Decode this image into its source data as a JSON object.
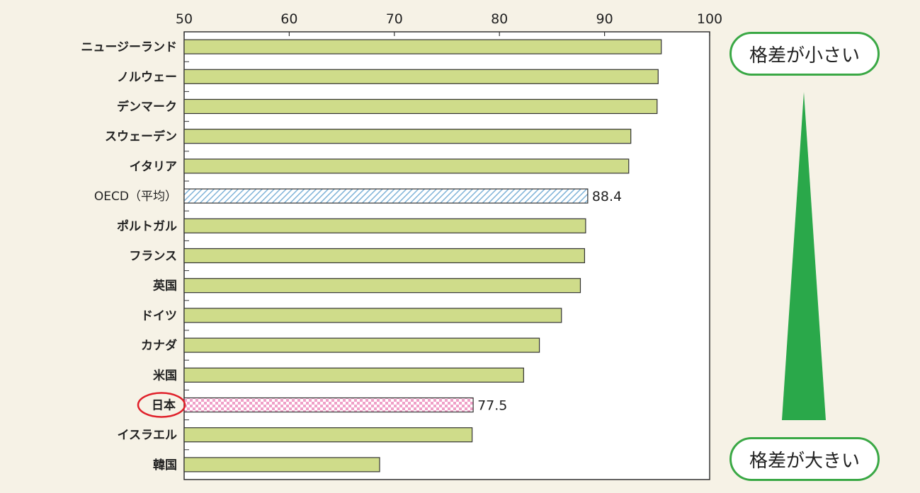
{
  "chart_data": {
    "type": "bar",
    "orientation": "horizontal",
    "title": "",
    "xlabel": "",
    "ylabel": "",
    "xlim": [
      50,
      100
    ],
    "x_ticks": [
      50,
      60,
      70,
      80,
      90,
      100
    ],
    "grid": false,
    "categories": [
      "ニュージーランド",
      "ノルウェー",
      "デンマーク",
      "スウェーデン",
      "イタリア",
      "OECD（平均）",
      "ポルトガル",
      "フランス",
      "英国",
      "ドイツ",
      "カナダ",
      "米国",
      "日本",
      "イスラエル",
      "韓国"
    ],
    "values": [
      95.4,
      95.1,
      95.0,
      92.5,
      92.3,
      88.4,
      88.2,
      88.1,
      87.7,
      85.9,
      83.8,
      82.3,
      77.5,
      77.4,
      68.6
    ],
    "labeled_values": [
      {
        "category": "OECD（平均）",
        "label": "88.4"
      },
      {
        "category": "日本",
        "label": "77.5"
      }
    ],
    "highlighted_category": "日本",
    "colors": {
      "bar_fill": "#cfdc8a",
      "bar_stroke": "#333333",
      "oecd_pattern": "#7fb3d8",
      "japan_pattern": "#f0a0c8",
      "highlight_circle": "#e0202a",
      "arrow_green": "#2aa84a"
    }
  },
  "annotations": {
    "top_callout": "格差が小さい",
    "bottom_callout": "格差が大きい"
  }
}
